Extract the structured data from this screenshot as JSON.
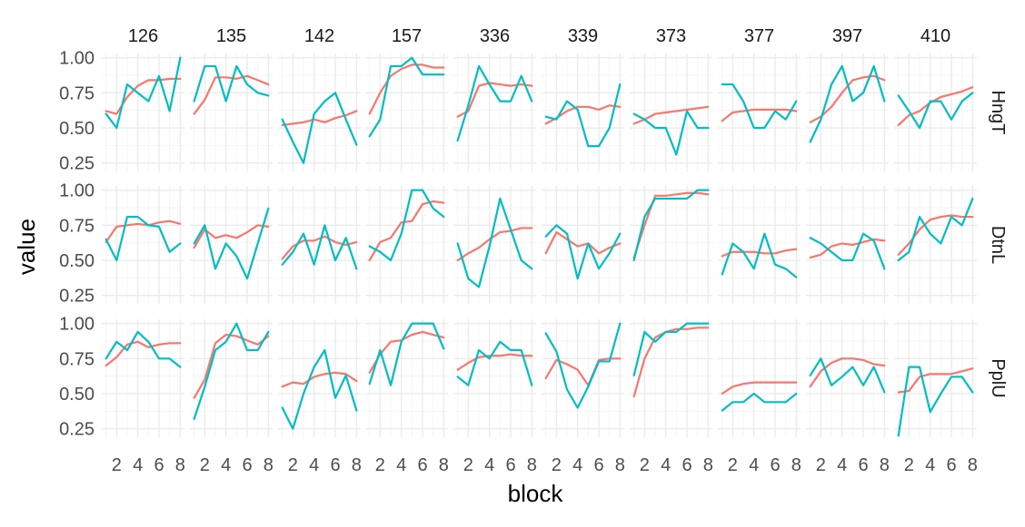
{
  "chart_data": {
    "type": "line",
    "xlabel": "block",
    "ylabel": "value",
    "xlim": [
      0.6,
      8.4
    ],
    "ylim": [
      0.19,
      1.03
    ],
    "x_ticks": [
      2,
      4,
      6,
      8
    ],
    "y_ticks": [
      0.25,
      0.5,
      0.75,
      1.0
    ],
    "y_tick_labels": [
      "0.25",
      "0.50",
      "0.75",
      "1.00"
    ],
    "grid": true,
    "legend": "none",
    "columns": [
      "126",
      "135",
      "142",
      "157",
      "336",
      "339",
      "373",
      "377",
      "397",
      "410"
    ],
    "rows": [
      "HngT",
      "DtnL",
      "PplU"
    ],
    "series_colors": [
      "#F8766D",
      "#00BFC4"
    ],
    "x": [
      1,
      2,
      3,
      4,
      5,
      6,
      7,
      8
    ],
    "panels": [
      {
        "row": "HngT",
        "column": "126",
        "series": [
          [
            0.62,
            0.6,
            0.72,
            0.8,
            0.84,
            0.84,
            0.85,
            0.85
          ],
          [
            0.6,
            0.5,
            0.81,
            0.75,
            0.69,
            0.87,
            0.62,
            1.0
          ]
        ]
      },
      {
        "row": "HngT",
        "column": "135",
        "series": [
          [
            0.6,
            0.7,
            0.86,
            0.86,
            0.85,
            0.87,
            0.84,
            0.81
          ],
          [
            0.69,
            0.94,
            0.94,
            0.69,
            0.94,
            0.81,
            0.75,
            0.73
          ]
        ]
      },
      {
        "row": "HngT",
        "column": "142",
        "series": [
          [
            0.52,
            0.53,
            0.54,
            0.56,
            0.54,
            0.57,
            0.59,
            0.62
          ],
          [
            0.56,
            0.4,
            0.25,
            0.6,
            0.69,
            0.75,
            0.56,
            0.38
          ]
        ]
      },
      {
        "row": "HngT",
        "column": "157",
        "series": [
          [
            0.6,
            0.75,
            0.87,
            0.92,
            0.95,
            0.95,
            0.93,
            0.93
          ],
          [
            0.44,
            0.56,
            0.94,
            0.94,
            1.0,
            0.88,
            0.88,
            0.88
          ]
        ]
      },
      {
        "row": "HngT",
        "column": "336",
        "series": [
          [
            0.58,
            0.62,
            0.8,
            0.82,
            0.81,
            0.8,
            0.81,
            0.8
          ],
          [
            0.41,
            0.66,
            0.94,
            0.81,
            0.69,
            0.69,
            0.87,
            0.69
          ]
        ]
      },
      {
        "row": "HngT",
        "column": "339",
        "series": [
          [
            0.53,
            0.57,
            0.62,
            0.65,
            0.65,
            0.63,
            0.66,
            0.65
          ],
          [
            0.58,
            0.56,
            0.69,
            0.63,
            0.37,
            0.37,
            0.5,
            0.81
          ]
        ]
      },
      {
        "row": "HngT",
        "column": "373",
        "series": [
          [
            0.53,
            0.56,
            0.6,
            0.61,
            0.62,
            0.63,
            0.64,
            0.65
          ],
          [
            0.6,
            0.56,
            0.5,
            0.5,
            0.31,
            0.62,
            0.5,
            0.5
          ]
        ]
      },
      {
        "row": "HngT",
        "column": "377",
        "series": [
          [
            0.55,
            0.61,
            0.62,
            0.63,
            0.63,
            0.63,
            0.63,
            0.62
          ],
          [
            0.81,
            0.81,
            0.69,
            0.5,
            0.5,
            0.62,
            0.56,
            0.69
          ]
        ]
      },
      {
        "row": "HngT",
        "column": "397",
        "series": [
          [
            0.54,
            0.58,
            0.65,
            0.75,
            0.84,
            0.86,
            0.87,
            0.84
          ],
          [
            0.4,
            0.56,
            0.81,
            0.94,
            0.69,
            0.75,
            0.94,
            0.69
          ]
        ]
      },
      {
        "row": "HngT",
        "column": "410",
        "series": [
          [
            0.52,
            0.59,
            0.62,
            0.68,
            0.72,
            0.74,
            0.76,
            0.79
          ],
          [
            0.73,
            0.62,
            0.5,
            0.69,
            0.69,
            0.56,
            0.69,
            0.75
          ]
        ]
      },
      {
        "row": "DtnL",
        "column": "126",
        "series": [
          [
            0.63,
            0.74,
            0.75,
            0.76,
            0.75,
            0.77,
            0.78,
            0.76
          ],
          [
            0.65,
            0.5,
            0.81,
            0.81,
            0.75,
            0.74,
            0.56,
            0.62
          ]
        ]
      },
      {
        "row": "DtnL",
        "column": "135",
        "series": [
          [
            0.59,
            0.72,
            0.66,
            0.68,
            0.66,
            0.7,
            0.75,
            0.74
          ],
          [
            0.62,
            0.75,
            0.44,
            0.62,
            0.53,
            0.37,
            0.62,
            0.87
          ]
        ]
      },
      {
        "row": "DtnL",
        "column": "142",
        "series": [
          [
            0.51,
            0.6,
            0.64,
            0.64,
            0.67,
            0.63,
            0.61,
            0.63
          ],
          [
            0.47,
            0.56,
            0.69,
            0.47,
            0.75,
            0.5,
            0.66,
            0.44
          ]
        ]
      },
      {
        "row": "DtnL",
        "column": "157",
        "series": [
          [
            0.5,
            0.63,
            0.66,
            0.77,
            0.78,
            0.9,
            0.92,
            0.91
          ],
          [
            0.6,
            0.56,
            0.5,
            0.69,
            1.0,
            1.0,
            0.87,
            0.81
          ]
        ]
      },
      {
        "row": "DtnL",
        "column": "336",
        "series": [
          [
            0.5,
            0.55,
            0.59,
            0.65,
            0.7,
            0.71,
            0.73,
            0.73
          ],
          [
            0.62,
            0.37,
            0.31,
            0.6,
            0.94,
            0.72,
            0.5,
            0.44
          ]
        ]
      },
      {
        "row": "DtnL",
        "column": "339",
        "series": [
          [
            0.55,
            0.7,
            0.65,
            0.6,
            0.62,
            0.55,
            0.59,
            0.62
          ],
          [
            0.67,
            0.75,
            0.69,
            0.37,
            0.62,
            0.44,
            0.55,
            0.69
          ]
        ]
      },
      {
        "row": "DtnL",
        "column": "373",
        "series": [
          [
            0.52,
            0.75,
            0.96,
            0.96,
            0.97,
            0.98,
            0.98,
            0.97
          ],
          [
            0.5,
            0.81,
            0.94,
            0.94,
            0.94,
            0.94,
            1.0,
            1.0
          ]
        ]
      },
      {
        "row": "DtnL",
        "column": "377",
        "series": [
          [
            0.53,
            0.56,
            0.56,
            0.56,
            0.55,
            0.55,
            0.57,
            0.58
          ],
          [
            0.4,
            0.62,
            0.56,
            0.44,
            0.69,
            0.47,
            0.44,
            0.38
          ]
        ]
      },
      {
        "row": "DtnL",
        "column": "397",
        "series": [
          [
            0.52,
            0.54,
            0.6,
            0.62,
            0.61,
            0.63,
            0.65,
            0.64
          ],
          [
            0.66,
            0.62,
            0.56,
            0.5,
            0.5,
            0.69,
            0.64,
            0.44
          ]
        ]
      },
      {
        "row": "DtnL",
        "column": "410",
        "series": [
          [
            0.54,
            0.62,
            0.72,
            0.79,
            0.81,
            0.82,
            0.81,
            0.81
          ],
          [
            0.5,
            0.56,
            0.81,
            0.69,
            0.62,
            0.81,
            0.75,
            0.94
          ]
        ]
      },
      {
        "row": "PplU",
        "column": "126",
        "series": [
          [
            0.7,
            0.76,
            0.85,
            0.87,
            0.83,
            0.85,
            0.86,
            0.86
          ],
          [
            0.75,
            0.87,
            0.81,
            0.94,
            0.87,
            0.75,
            0.75,
            0.69
          ]
        ]
      },
      {
        "row": "PplU",
        "column": "135",
        "series": [
          [
            0.47,
            0.6,
            0.86,
            0.92,
            0.91,
            0.88,
            0.85,
            0.91
          ],
          [
            0.32,
            0.55,
            0.81,
            0.87,
            1.0,
            0.81,
            0.81,
            0.94
          ]
        ]
      },
      {
        "row": "PplU",
        "column": "142",
        "series": [
          [
            0.55,
            0.58,
            0.57,
            0.62,
            0.64,
            0.65,
            0.64,
            0.59
          ],
          [
            0.4,
            0.25,
            0.5,
            0.69,
            0.81,
            0.47,
            0.63,
            0.38
          ]
        ]
      },
      {
        "row": "PplU",
        "column": "157",
        "series": [
          [
            0.65,
            0.78,
            0.87,
            0.88,
            0.92,
            0.94,
            0.92,
            0.9
          ],
          [
            0.57,
            0.81,
            0.56,
            0.87,
            1.0,
            1.0,
            1.0,
            0.82
          ]
        ]
      },
      {
        "row": "PplU",
        "column": "336",
        "series": [
          [
            0.67,
            0.72,
            0.76,
            0.77,
            0.77,
            0.78,
            0.77,
            0.77
          ],
          [
            0.62,
            0.56,
            0.81,
            0.75,
            0.87,
            0.81,
            0.81,
            0.56
          ]
        ]
      },
      {
        "row": "PplU",
        "column": "339",
        "series": [
          [
            0.61,
            0.74,
            0.71,
            0.67,
            0.56,
            0.74,
            0.75,
            0.75
          ],
          [
            0.93,
            0.8,
            0.53,
            0.4,
            0.55,
            0.73,
            0.73,
            1.0
          ]
        ]
      },
      {
        "row": "PplU",
        "column": "373",
        "series": [
          [
            0.48,
            0.75,
            0.9,
            0.94,
            0.96,
            0.96,
            0.97,
            0.97
          ],
          [
            0.63,
            0.94,
            0.87,
            0.94,
            0.94,
            1.0,
            1.0,
            1.0
          ]
        ]
      },
      {
        "row": "PplU",
        "column": "377",
        "series": [
          [
            0.5,
            0.55,
            0.57,
            0.58,
            0.58,
            0.58,
            0.58,
            0.58
          ],
          [
            0.38,
            0.44,
            0.44,
            0.5,
            0.44,
            0.44,
            0.44,
            0.5
          ]
        ]
      },
      {
        "row": "PplU",
        "column": "397",
        "series": [
          [
            0.55,
            0.66,
            0.72,
            0.75,
            0.75,
            0.74,
            0.71,
            0.7
          ],
          [
            0.63,
            0.75,
            0.56,
            0.62,
            0.69,
            0.56,
            0.69,
            0.51
          ]
        ]
      },
      {
        "row": "PplU",
        "column": "410",
        "series": [
          [
            0.51,
            0.52,
            0.62,
            0.64,
            0.64,
            0.64,
            0.66,
            0.68
          ],
          [
            0.2,
            0.69,
            0.69,
            0.37,
            0.5,
            0.62,
            0.62,
            0.51
          ]
        ]
      }
    ]
  }
}
